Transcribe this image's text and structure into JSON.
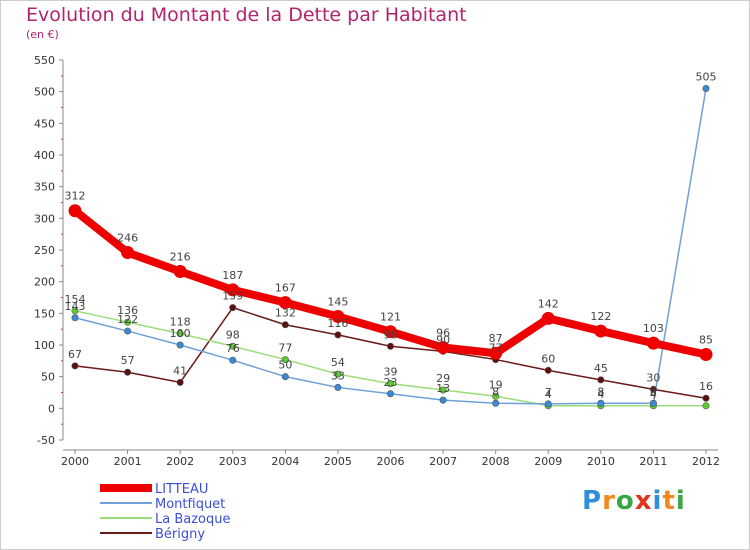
{
  "title": "Evolution du Montant de la Dette par Habitant",
  "subtitle": "(en €)",
  "logo": {
    "letters": [
      "P",
      "r",
      "o",
      "x",
      "i",
      "t",
      "i"
    ],
    "colors": [
      "#2f8fd8",
      "#f08a1c",
      "#39a845",
      "#e0341e",
      "#2f8fd8",
      "#f08a1c",
      "#39a845"
    ]
  },
  "chart_data": {
    "type": "line",
    "title": "Evolution du Montant de la Dette par Habitant",
    "ylabel": "(en €)",
    "xlabel": "",
    "ylim": [
      -50,
      550
    ],
    "yticks": [
      "-50",
      "0",
      "50",
      "100",
      "150",
      "200",
      "250",
      "300",
      "350",
      "400",
      "450",
      "500",
      "550"
    ],
    "ytick_values": [
      -50,
      0,
      50,
      100,
      150,
      200,
      250,
      300,
      350,
      400,
      450,
      500,
      550
    ],
    "categories": [
      "2000",
      "2001",
      "2002",
      "2003",
      "2004",
      "2005",
      "2006",
      "2007",
      "2008",
      "2009",
      "2010",
      "2011",
      "2012"
    ],
    "grid": false,
    "legend_position": "bottom-left",
    "series": [
      {
        "name": "Bérigny",
        "color": "#6b1a1a",
        "marker_color": "#5a1010",
        "values": [
          67,
          57,
          41,
          159,
          132,
          116,
          98,
          90,
          77,
          60,
          45,
          30,
          16
        ],
        "labels": [
          "67",
          "57",
          "41",
          "159",
          "132",
          "116",
          "98",
          "90",
          "77",
          "60",
          "45",
          "30",
          "16"
        ]
      },
      {
        "name": "La Bazoque",
        "color": "#99dd77",
        "marker_color": "#5ccf2a",
        "values": [
          154,
          136,
          118,
          98,
          77,
          54,
          39,
          29,
          19,
          4,
          4,
          4,
          4
        ],
        "labels": [
          "154",
          "136",
          "118",
          "98",
          "77",
          "54",
          "39",
          "29",
          "19",
          "4",
          "4",
          "4",
          ""
        ]
      },
      {
        "name": "Montfiquet",
        "color": "#6fa0d8",
        "marker_color": "#3b8ad6",
        "values": [
          143,
          122,
          100,
          76,
          50,
          33,
          23,
          13,
          8,
          7,
          8,
          8,
          505
        ],
        "labels": [
          "143",
          "122",
          "100",
          "76",
          "50",
          "33",
          "23",
          "13",
          "8",
          "7",
          "8",
          "8",
          "505"
        ]
      },
      {
        "name": "LITTEAU",
        "color": "#ee0000",
        "marker_color": "#ee0000",
        "values": [
          312,
          246,
          216,
          187,
          167,
          145,
          121,
          96,
          87,
          142,
          122,
          103,
          85
        ],
        "labels": [
          "312",
          "246",
          "216",
          "187",
          "167",
          "145",
          "121",
          "96",
          "87",
          "142",
          "122",
          "103",
          "85"
        ]
      }
    ],
    "legend": [
      "LITTEAU",
      "Montfiquet",
      "La Bazoque",
      "Bérigny"
    ]
  }
}
